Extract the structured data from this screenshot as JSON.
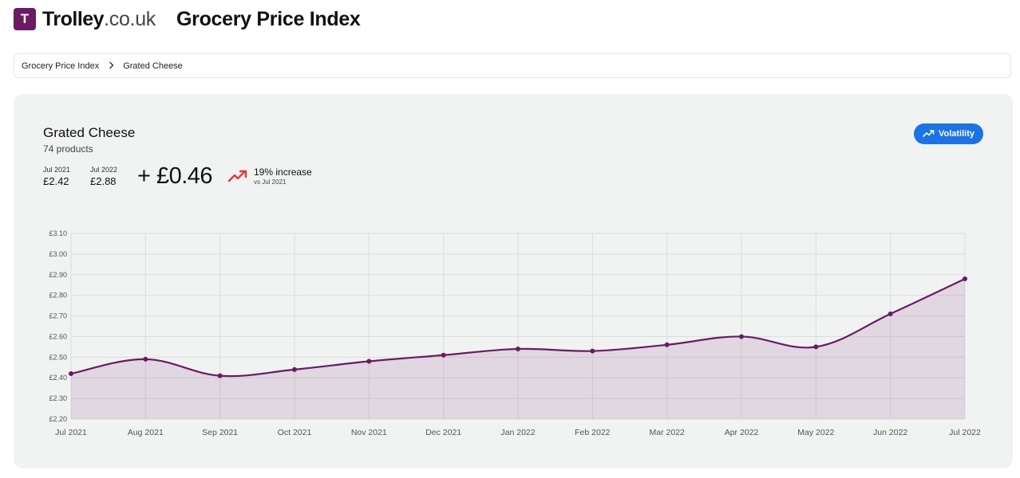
{
  "header": {
    "logo_letter": "T",
    "logo_name": "Trolley",
    "logo_domain": ".co.uk",
    "page_title": "Grocery Price Index"
  },
  "breadcrumb": {
    "items": [
      "Grocery Price Index",
      "Grated Cheese"
    ]
  },
  "card": {
    "title": "Grated Cheese",
    "subtitle": "74 products",
    "start": {
      "label": "Jul 2021",
      "value": "£2.42"
    },
    "end": {
      "label": "Jul 2022",
      "value": "£2.88"
    },
    "change_value": "+ £0.46",
    "change_pct": "19% increase",
    "change_vs": "vs Jul 2021",
    "volatility_label": "Volatility"
  },
  "colors": {
    "brand": "#6b1a63",
    "line": "#6b1a63",
    "area": "rgba(107,26,99,0.12)",
    "trend_up": "#e53935",
    "button": "#1a73e8"
  },
  "chart_data": {
    "type": "area",
    "x": [
      "Jul 2021",
      "Aug 2021",
      "Sep 2021",
      "Oct 2021",
      "Nov 2021",
      "Dec 2021",
      "Jan 2022",
      "Feb 2022",
      "Mar 2022",
      "Apr 2022",
      "May 2022",
      "Jun 2022",
      "Jul 2022"
    ],
    "series": [
      {
        "values": [
          2.42,
          2.49,
          2.41,
          2.44,
          2.48,
          2.51,
          2.54,
          2.53,
          2.56,
          2.6,
          2.55,
          2.71,
          2.88
        ]
      }
    ],
    "ylim": [
      2.2,
      3.1
    ],
    "yticks": [
      "£3.10",
      "£3.00",
      "£2.90",
      "£2.80",
      "£2.70",
      "£2.60",
      "£2.50",
      "£2.40",
      "£2.30",
      "£2.20"
    ],
    "grid": true
  }
}
